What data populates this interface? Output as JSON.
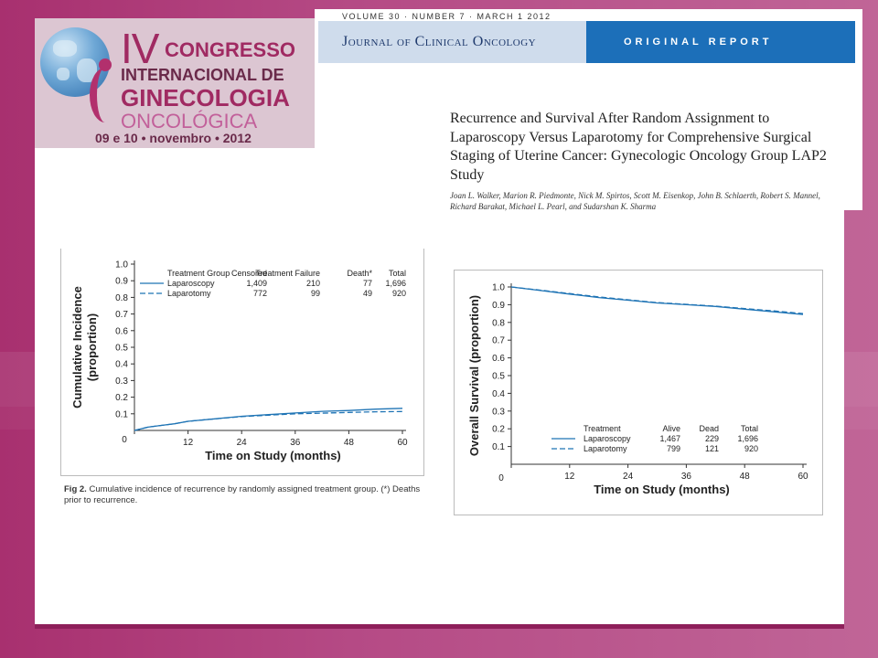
{
  "logo": {
    "roman": "IV",
    "line1": "CONGRESSO",
    "line2": "INTERNACIONAL DE",
    "line3": "GINECOLOGIA",
    "line4": "ONCOLÓGICA",
    "date": "09 e 10 • novembro • 2012",
    "accent": "#a02a62"
  },
  "journal": {
    "volume_line": "VOLUME 30 · NUMBER 7 · MARCH 1 2012",
    "name": "Journal of Clinical Oncology",
    "section": "ORIGINAL REPORT",
    "title": "Recurrence and Survival After Random Assignment to Laparoscopy Versus Laparotomy for Comprehensive Surgical Staging of Uterine Cancer: Gynecologic Oncology Group LAP2 Study",
    "authors": "Joan L. Walker, Marion R. Piedmonte, Nick M. Spirtos, Scott M. Eisenkop, John B. Schlaerth, Robert S. Mannel, Richard Barakat, Michael L. Pearl, and Sudarshan K. Sharma"
  },
  "chart_data": [
    {
      "type": "line",
      "xlabel": "Time on Study (months)",
      "ylabel": "Cumulative Incidence (proportion)",
      "xlim": [
        0,
        60
      ],
      "ylim": [
        0,
        1.0
      ],
      "xticks": [
        0,
        12,
        24,
        36,
        48,
        60
      ],
      "yticks": [
        0.1,
        0.2,
        0.3,
        0.4,
        0.5,
        0.6,
        0.7,
        0.8,
        0.9,
        1.0
      ],
      "legend": {
        "headers": [
          "Treatment Group",
          "Censored",
          "Treatment Failure",
          "Death*",
          "Total"
        ],
        "rows": [
          [
            "Laparoscopy",
            "1,409",
            "210",
            "77",
            "1,696"
          ],
          [
            "Laparotomy",
            "772",
            "99",
            "49",
            "920"
          ]
        ],
        "placement": "top-right"
      },
      "series": [
        {
          "name": "Laparoscopy",
          "style": "solid",
          "color": "#1f74b5",
          "x": [
            0,
            3,
            6,
            9,
            12,
            18,
            24,
            30,
            36,
            42,
            48,
            54,
            60
          ],
          "y": [
            0.0,
            0.02,
            0.03,
            0.04,
            0.055,
            0.07,
            0.085,
            0.095,
            0.105,
            0.115,
            0.12,
            0.128,
            0.133
          ]
        },
        {
          "name": "Laparotomy",
          "style": "dashed",
          "color": "#1f74b5",
          "x": [
            0,
            3,
            6,
            9,
            12,
            18,
            24,
            30,
            36,
            42,
            48,
            54,
            60
          ],
          "y": [
            0.0,
            0.02,
            0.03,
            0.04,
            0.055,
            0.07,
            0.083,
            0.092,
            0.1,
            0.104,
            0.108,
            0.112,
            0.114
          ]
        }
      ],
      "caption_label": "Fig 2.",
      "caption_text": "Cumulative incidence of recurrence by randomly assigned treatment group. (*) Deaths prior to recurrence."
    },
    {
      "type": "line",
      "xlabel": "Time on Study (months)",
      "ylabel": "Overall Survival (proportion)",
      "xlim": [
        0,
        60
      ],
      "ylim": [
        0,
        1.0
      ],
      "xticks": [
        0,
        12,
        24,
        36,
        48,
        60
      ],
      "yticks": [
        0.1,
        0.2,
        0.3,
        0.4,
        0.5,
        0.6,
        0.7,
        0.8,
        0.9,
        1.0
      ],
      "legend": {
        "headers": [
          "Treatment",
          "Alive",
          "Dead",
          "Total"
        ],
        "rows": [
          [
            "Laparoscopy",
            "1,467",
            "229",
            "1,696"
          ],
          [
            "Laparotomy",
            "799",
            "121",
            "920"
          ]
        ],
        "placement": "bottom-right"
      },
      "series": [
        {
          "name": "Laparoscopy",
          "style": "solid",
          "color": "#1f74b5",
          "x": [
            0,
            6,
            12,
            18,
            24,
            30,
            36,
            42,
            48,
            54,
            60
          ],
          "y": [
            1.0,
            0.98,
            0.96,
            0.94,
            0.925,
            0.91,
            0.9,
            0.89,
            0.875,
            0.86,
            0.845
          ]
        },
        {
          "name": "Laparotomy",
          "style": "dashed",
          "color": "#1f74b5",
          "x": [
            0,
            6,
            12,
            18,
            24,
            30,
            36,
            42,
            48,
            54,
            60
          ],
          "y": [
            1.0,
            0.982,
            0.963,
            0.944,
            0.928,
            0.912,
            0.902,
            0.892,
            0.878,
            0.865,
            0.85
          ]
        }
      ]
    }
  ]
}
